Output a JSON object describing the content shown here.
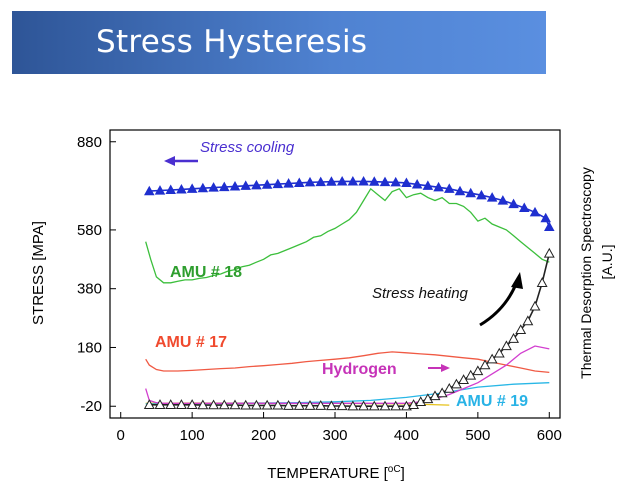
{
  "slide": {
    "title": "Stress Hysteresis"
  },
  "chart_data": {
    "type": "line",
    "title": "",
    "xlabel": "TEMPERATURE [",
    "xlabel_unit": "oC",
    "xlabel_close": "]",
    "ylabel": "STRESS [MPA]",
    "y2label_line1": "Thermal Desorption Spectroscopy",
    "y2label_line2": "[A.U.]",
    "xlim": [
      -15,
      615
    ],
    "ylim": [
      -60,
      920
    ],
    "x_ticks": [
      0,
      100,
      200,
      300,
      400,
      500,
      600
    ],
    "x_tick_labels": [
      "0",
      "100",
      "200",
      "300",
      "400",
      "500",
      "600"
    ],
    "y_ticks": [
      -20,
      180,
      380,
      580,
      880
    ],
    "y_tick_labels": [
      "-20",
      "180",
      "380",
      "580",
      "880"
    ],
    "grid": false,
    "annotations": {
      "stress_cooling": "Stress cooling",
      "stress_heating": "Stress heating",
      "amu18": "AMU # 18",
      "amu17": "AMU # 17",
      "hydrogen": "Hydrogen",
      "amu19": "AMU # 19"
    },
    "colors": {
      "cooling": "#1f2fcf",
      "heating": "#222222",
      "amu18": "#3cbf3c",
      "amu17": "#f05a44",
      "hydrogen": "#d23ecf",
      "amu19": "#29b7e6",
      "yellow": "#e6c21a",
      "cooling_label": "#4a2fd0",
      "amu18_label": "#2e9e2e",
      "amu17_label": "#f04a2e",
      "hydrogen_label": "#c633b8",
      "amu19_label": "#29b3e6"
    },
    "series": [
      {
        "key": "cooling",
        "marker": "filled-triangle",
        "x": [
          40,
          55,
          70,
          85,
          100,
          115,
          130,
          145,
          160,
          175,
          190,
          205,
          220,
          235,
          250,
          265,
          280,
          295,
          310,
          325,
          340,
          355,
          370,
          385,
          400,
          415,
          430,
          445,
          460,
          475,
          490,
          505,
          520,
          535,
          550,
          565,
          580,
          595,
          600
        ],
        "y": [
          712,
          714,
          716,
          718,
          720,
          722,
          724,
          726,
          728,
          730,
          732,
          734,
          736,
          738,
          740,
          742,
          743,
          744,
          745,
          745,
          745,
          744,
          743,
          742,
          740,
          735,
          730,
          725,
          720,
          712,
          705,
          698,
          690,
          680,
          668,
          655,
          640,
          620,
          590
        ]
      },
      {
        "key": "heating",
        "marker": "open-triangle",
        "x": [
          40,
          55,
          70,
          85,
          100,
          115,
          130,
          145,
          160,
          175,
          190,
          205,
          220,
          235,
          250,
          265,
          280,
          295,
          310,
          325,
          340,
          355,
          370,
          385,
          400,
          410,
          420,
          430,
          440,
          450,
          460,
          470,
          480,
          490,
          500,
          510,
          520,
          530,
          540,
          550,
          560,
          570,
          580,
          590,
          600
        ],
        "y": [
          -15,
          -15,
          -15,
          -15,
          -15,
          -16,
          -16,
          -16,
          -16,
          -17,
          -17,
          -17,
          -17,
          -18,
          -18,
          -18,
          -18,
          -19,
          -19,
          -20,
          -20,
          -20,
          -20,
          -20,
          -20,
          -15,
          -5,
          5,
          15,
          25,
          40,
          55,
          70,
          85,
          100,
          120,
          140,
          160,
          185,
          210,
          240,
          270,
          320,
          400,
          500
        ]
      },
      {
        "key": "amu18",
        "marker": "none",
        "x": [
          35,
          42,
          50,
          60,
          70,
          80,
          90,
          100,
          110,
          120,
          130,
          140,
          150,
          160,
          170,
          180,
          190,
          200,
          210,
          220,
          230,
          240,
          250,
          260,
          270,
          280,
          290,
          300,
          310,
          320,
          330,
          340,
          350,
          360,
          370,
          380,
          390,
          400,
          410,
          420,
          430,
          440,
          450,
          460,
          470,
          480,
          490,
          500,
          510,
          520,
          530,
          540,
          550,
          560,
          570,
          580,
          590,
          600
        ],
        "y": [
          540,
          480,
          420,
          400,
          400,
          405,
          410,
          410,
          415,
          418,
          425,
          430,
          440,
          445,
          455,
          460,
          470,
          480,
          495,
          500,
          510,
          520,
          530,
          540,
          555,
          560,
          575,
          585,
          600,
          615,
          640,
          680,
          720,
          700,
          680,
          710,
          720,
          690,
          700,
          705,
          690,
          680,
          690,
          670,
          670,
          660,
          640,
          610,
          620,
          600,
          590,
          580,
          560,
          540,
          520,
          500,
          480,
          470
        ]
      },
      {
        "key": "amu17",
        "marker": "none",
        "x": [
          35,
          40,
          50,
          60,
          80,
          100,
          120,
          140,
          160,
          180,
          200,
          220,
          240,
          260,
          280,
          300,
          320,
          340,
          360,
          380,
          400,
          420,
          440,
          460,
          480,
          500,
          520,
          540,
          560,
          580,
          600
        ],
        "y": [
          140,
          120,
          105,
          100,
          100,
          102,
          105,
          108,
          110,
          115,
          118,
          122,
          126,
          132,
          136,
          140,
          145,
          152,
          160,
          165,
          162,
          158,
          155,
          150,
          145,
          140,
          130,
          120,
          110,
          100,
          95
        ]
      },
      {
        "key": "hydrogen",
        "marker": "none",
        "x": [
          35,
          40,
          50,
          60,
          80,
          100,
          150,
          200,
          250,
          300,
          350,
          400,
          420,
          440,
          460,
          480,
          500,
          520,
          540,
          560,
          580,
          600
        ],
        "y": [
          40,
          0,
          -8,
          -10,
          -10,
          -10,
          -10,
          -10,
          -10,
          -10,
          -10,
          -10,
          -5,
          5,
          20,
          40,
          60,
          90,
          120,
          160,
          185,
          175
        ]
      },
      {
        "key": "amu19",
        "marker": "none",
        "x": [
          35,
          60,
          100,
          150,
          200,
          250,
          300,
          350,
          400,
          450,
          500,
          550,
          600
        ],
        "y": [
          -12,
          -12,
          -11,
          -10,
          -9,
          -8,
          -5,
          0,
          10,
          25,
          45,
          55,
          60
        ]
      },
      {
        "key": "yellow",
        "marker": "none",
        "x": [
          35,
          100,
          200,
          300,
          400,
          460
        ],
        "y": [
          -10,
          -9,
          -9,
          -10,
          -12,
          -16
        ]
      }
    ]
  }
}
